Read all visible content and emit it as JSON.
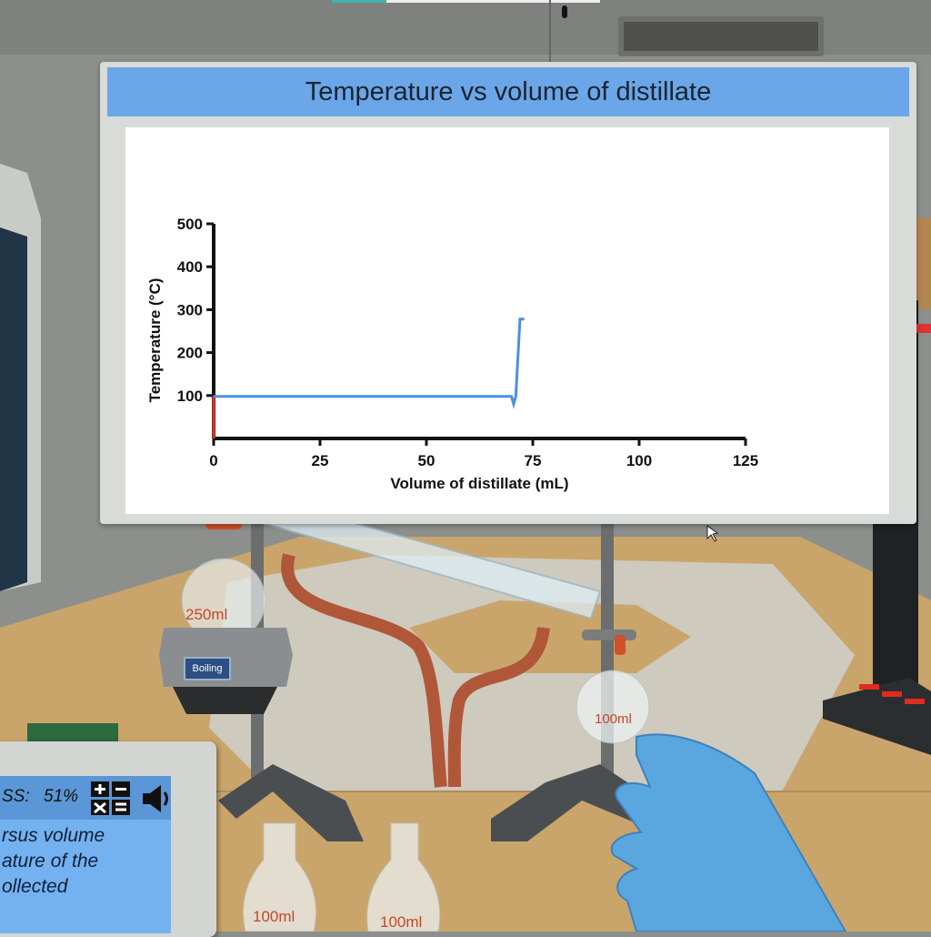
{
  "board": {
    "title": "Temperature vs volume of distillate"
  },
  "chart_data": {
    "type": "line",
    "title": "Temperature vs volume of distillate",
    "xlabel": "Volume of distillate (mL)",
    "ylabel": "Temperature (°C)",
    "xlim": [
      0,
      125
    ],
    "ylim": [
      0,
      500
    ],
    "xticks": [
      0,
      25,
      50,
      75,
      100,
      125
    ],
    "yticks": [
      100,
      200,
      300,
      400,
      500
    ],
    "grid": false,
    "series": [
      {
        "color": "#e23a2a",
        "x": [
          0,
          0
        ],
        "y": [
          0,
          100
        ]
      },
      {
        "color": "#4a90e2",
        "x": [
          0,
          70,
          70.5,
          71,
          72,
          73
        ],
        "y": [
          98,
          98,
          80,
          98,
          278,
          278
        ]
      }
    ]
  },
  "apparatus": {
    "heater_status": "Boiling",
    "flask_large": "250ml",
    "flask_receiver": "100ml",
    "flask_spare_1": "100ml",
    "flask_spare_2": "100ml"
  },
  "tablet": {
    "progress_label": "SS:",
    "progress_value": "51%",
    "progress_percent": 51,
    "calculator_icon": "calculator-icon",
    "sound_icon": "speaker-icon",
    "instruction_lines": [
      "rsus volume",
      "ature of the",
      "ollected"
    ]
  },
  "colors": {
    "board_title": "#6aa6e8",
    "tablet_panel": "#74b1f0",
    "glove": "#5aa7e0",
    "tubing": "#b0573a"
  }
}
